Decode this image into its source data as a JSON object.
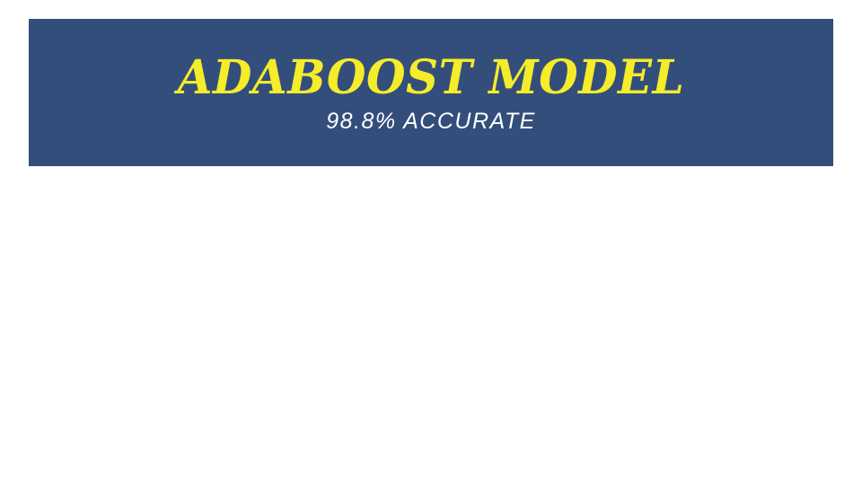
{
  "slide": {
    "title": "ADABOOST MODEL",
    "subtitle": "98.8% ACCURATE"
  },
  "colors": {
    "band_background": "#344e7b",
    "title_text": "#f5ec2a",
    "subtitle_text": "#ffffff",
    "slide_background": "#ffffff"
  }
}
